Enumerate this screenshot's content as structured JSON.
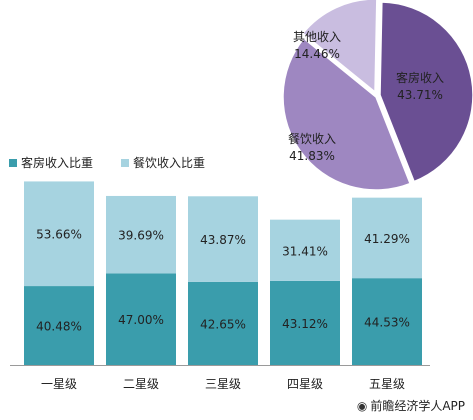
{
  "chart_data": [
    {
      "type": "bar",
      "stacked": true,
      "categories": [
        "一星级",
        "二星级",
        "三星级",
        "四星级",
        "五星级"
      ],
      "series": [
        {
          "name": "客房收入比重",
          "values": [
            40.48,
            47.0,
            42.65,
            43.12,
            44.53
          ],
          "color": "#3a9dac"
        },
        {
          "name": "餐饮收入比重",
          "values": [
            53.66,
            39.69,
            43.87,
            31.41,
            41.29
          ],
          "color": "#a6d3e0"
        }
      ],
      "data_labels": {
        "客房收入比重": [
          "40.48%",
          "47.00%",
          "42.65%",
          "43.12%",
          "44.53%"
        ],
        "餐饮收入比重": [
          "53.66%",
          "39.69%",
          "43.87%",
          "31.41%",
          "41.29%"
        ]
      },
      "legend_position": "top-left",
      "grid": false
    },
    {
      "type": "pie",
      "slices": [
        {
          "label": "客房收入",
          "value": 43.71,
          "text": "43.71%",
          "color": "#6a4f93",
          "exploded": false
        },
        {
          "label": "餐饮收入",
          "value": 41.83,
          "text": "41.83%",
          "color": "#9e87c1",
          "exploded": true
        },
        {
          "label": "其他收入",
          "value": 14.46,
          "text": "14.46%",
          "color": "#c9bde0",
          "exploded": true
        }
      ]
    }
  ],
  "credit": {
    "icon": "camera-icon",
    "text": "前瞻经济学人APP"
  }
}
